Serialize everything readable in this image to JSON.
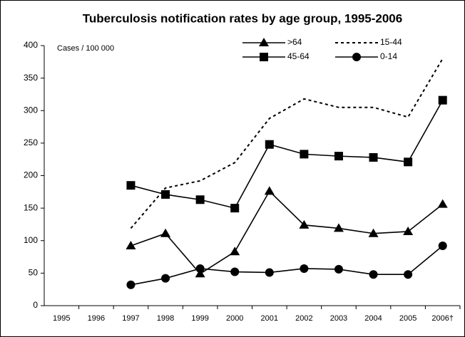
{
  "chart_data": {
    "type": "line",
    "title": "Tuberculosis notification rates by age group, 1995-2006",
    "annotation": "Cases / 100 000",
    "categories": [
      "1995",
      "1996",
      "1997",
      "1998",
      "1999",
      "2000",
      "2001",
      "2002",
      "2003",
      "2004",
      "2005",
      "2006†"
    ],
    "series": [
      {
        "name": ">64",
        "color": "#000000",
        "marker": "triangle",
        "dash": false,
        "values": [
          null,
          null,
          92,
          111,
          49,
          83,
          176,
          124,
          119,
          111,
          114,
          156
        ]
      },
      {
        "name": "15-44",
        "color": "#000000",
        "marker": "none",
        "dash": true,
        "values": [
          null,
          null,
          119,
          181,
          192,
          220,
          288,
          318,
          305,
          305,
          290,
          380
        ]
      },
      {
        "name": "45-64",
        "color": "#000000",
        "marker": "square",
        "dash": false,
        "values": [
          null,
          null,
          185,
          171,
          163,
          150,
          248,
          233,
          230,
          228,
          221,
          316
        ]
      },
      {
        "name": "0-14",
        "color": "#000000",
        "marker": "circle",
        "dash": false,
        "values": [
          null,
          null,
          32,
          42,
          57,
          52,
          51,
          57,
          56,
          48,
          48,
          92
        ]
      }
    ],
    "ylim": [
      0,
      400
    ],
    "yticks": [
      0,
      50,
      100,
      150,
      200,
      250,
      300,
      350,
      400
    ],
    "grid": false
  }
}
